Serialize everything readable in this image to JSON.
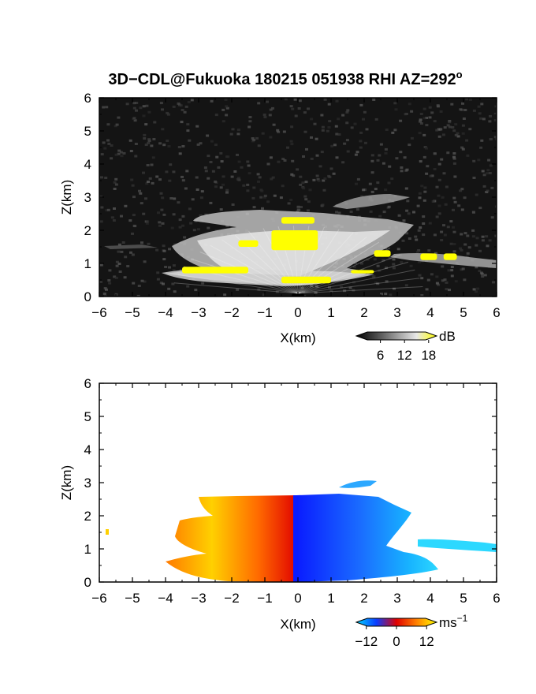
{
  "title": "3D−CDL@Fukuoka 180215 051938 RHI AZ=292",
  "title_superscript": "o",
  "chart_data": [
    {
      "type": "heatmap",
      "quantity": "reflectivity",
      "xlabel": "X(km)",
      "ylabel": "Z(km)",
      "xlim": [
        -6,
        6
      ],
      "ylim": [
        0,
        6
      ],
      "xticks": [
        "−6",
        "−5",
        "−4",
        "−3",
        "−2",
        "−1",
        "0",
        "1",
        "2",
        "3",
        "4",
        "5",
        "6"
      ],
      "yticks": [
        "0",
        "1",
        "2",
        "3",
        "4",
        "5",
        "6"
      ],
      "colorbar": {
        "unit": "dB",
        "ticks": [
          "6",
          "12",
          "18"
        ],
        "range": [
          0,
          20
        ],
        "colors": [
          "#000000",
          "#4a4a4a",
          "#9a9a9a",
          "#e8e8e8",
          "#ffff00"
        ]
      },
      "background_color": "#141414",
      "echo_regions": [
        {
          "feature": "main anvil",
          "xmin": -4.0,
          "xmax": 3.6,
          "zmin": 0.4,
          "zmax": 2.5
        },
        {
          "feature": "upper layer",
          "xmin": 1.2,
          "xmax": 3.3,
          "zmin": 2.6,
          "zmax": 3.0
        },
        {
          "feature": "low trailing layer",
          "xmin": 3.6,
          "xmax": 6.0,
          "zmin": 0.9,
          "zmax": 1.3
        },
        {
          "feature": "near-surface echo",
          "xmin": -5.9,
          "xmax": -4.2,
          "zmin": 1.4,
          "zmax": 1.6
        }
      ],
      "high_reflectivity_patches": [
        {
          "xmin": -0.8,
          "xmax": 0.6,
          "zmin": 1.4,
          "zmax": 2.0
        },
        {
          "xmin": -1.8,
          "xmax": -1.2,
          "zmin": 1.5,
          "zmax": 1.7
        },
        {
          "xmin": -0.5,
          "xmax": 0.5,
          "zmin": 2.2,
          "zmax": 2.4
        },
        {
          "xmin": -3.5,
          "xmax": -1.5,
          "zmin": 0.7,
          "zmax": 0.9
        },
        {
          "xmin": -0.5,
          "xmax": 1.0,
          "zmin": 0.4,
          "zmax": 0.6
        },
        {
          "xmin": 1.6,
          "xmax": 2.3,
          "zmin": 0.7,
          "zmax": 0.8
        },
        {
          "xmin": 2.3,
          "xmax": 2.8,
          "zmin": 1.2,
          "zmax": 1.4
        },
        {
          "xmin": 3.7,
          "xmax": 4.2,
          "zmin": 1.1,
          "zmax": 1.3
        },
        {
          "xmin": 4.4,
          "xmax": 4.8,
          "zmin": 1.1,
          "zmax": 1.3
        }
      ]
    },
    {
      "type": "heatmap",
      "quantity": "radial velocity",
      "xlabel": "X(km)",
      "ylabel": "Z(km)",
      "xlim": [
        -6,
        6
      ],
      "ylim": [
        0,
        6
      ],
      "xticks": [
        "−6",
        "−5",
        "−4",
        "−3",
        "−2",
        "−1",
        "0",
        "1",
        "2",
        "3",
        "4",
        "5",
        "6"
      ],
      "yticks": [
        "0",
        "1",
        "2",
        "3",
        "4",
        "5",
        "6"
      ],
      "colorbar": {
        "unit": "ms",
        "unit_superscript": "−1",
        "ticks": [
          "−12",
          "0",
          "12"
        ],
        "range": [
          -16,
          16
        ],
        "colors": [
          "#00d8ff",
          "#0a3cff",
          "#e00000",
          "#ff8000",
          "#ffff00"
        ]
      },
      "background_color": "#ffffff",
      "velocity_regions": [
        {
          "sign": "positive",
          "xmin": -4.2,
          "xmax": 0.0,
          "zmin": 0.1,
          "zmax": 2.6,
          "velocity": 8
        },
        {
          "sign": "negative",
          "xmin": 0.0,
          "xmax": 3.6,
          "zmin": 0.1,
          "zmax": 2.6,
          "velocity": -8
        },
        {
          "sign": "negative",
          "xmin": 1.5,
          "xmax": 2.5,
          "zmin": 2.8,
          "zmax": 3.1,
          "velocity": -12
        },
        {
          "sign": "negative",
          "xmin": 3.6,
          "xmax": 6.0,
          "zmin": 0.9,
          "zmax": 1.3,
          "velocity": -13
        },
        {
          "sign": "positive",
          "xmin": -5.85,
          "xmax": -5.75,
          "zmin": 1.4,
          "zmax": 1.6,
          "velocity": 14
        }
      ]
    }
  ]
}
